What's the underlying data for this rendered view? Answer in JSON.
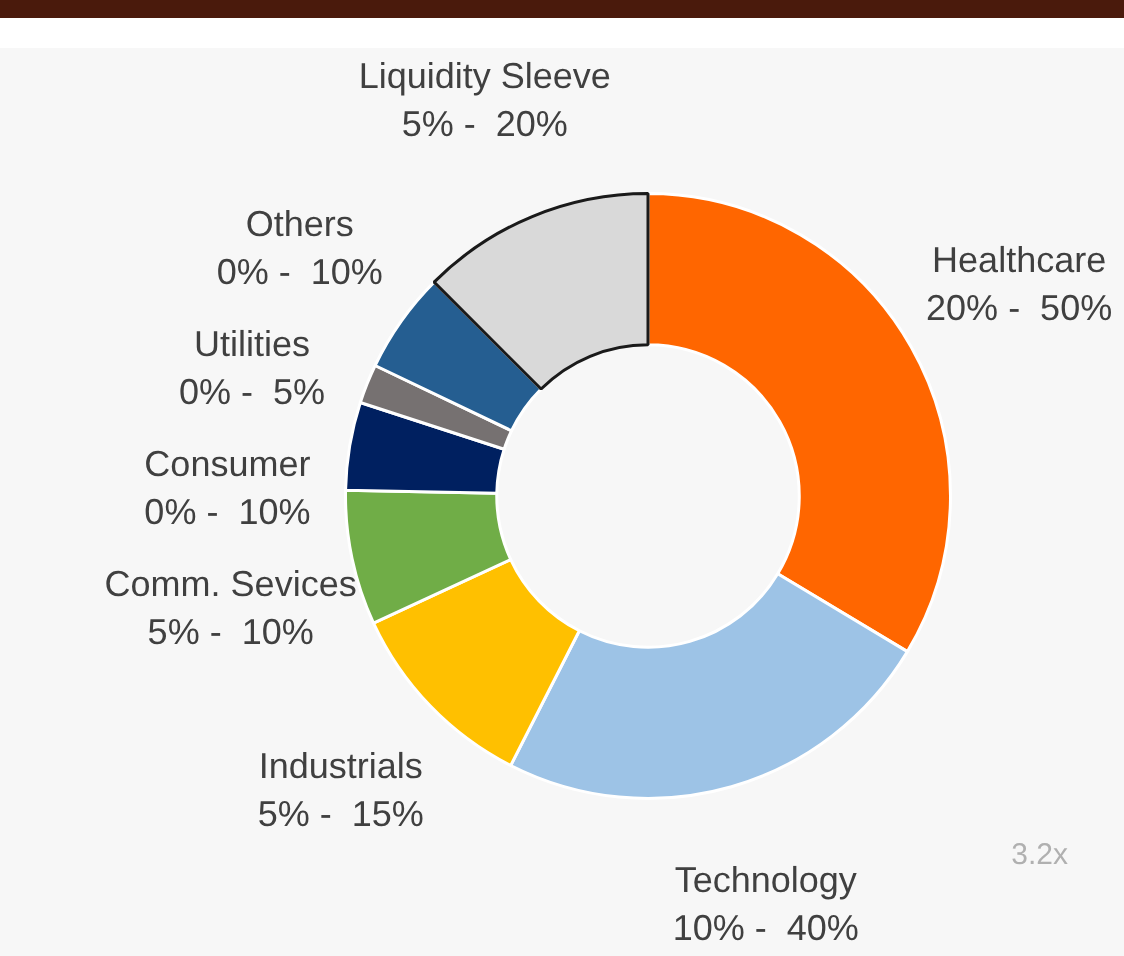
{
  "chart_data": {
    "type": "donut",
    "categories": [
      "Healthcare",
      "Technology",
      "Industrials",
      "Comm. Sevices",
      "Consumer",
      "Utilities",
      "Others",
      "Liquidity Sleeve"
    ],
    "values": [
      33.6,
      23.9,
      10.6,
      7.2,
      4.7,
      2.1,
      5.4,
      12.5
    ],
    "colors": [
      "#ff6600",
      "#9dc3e6",
      "#ffc000",
      "#70ad47",
      "#002060",
      "#767171",
      "#255e91",
      "#d9d9d9"
    ],
    "annotations": [
      {
        "text": "20% -  50%",
        "x": "Healthcare"
      },
      {
        "text": "10% -  40%",
        "x": "Technology"
      },
      {
        "text": "5% -  15%",
        "x": "Industrials"
      },
      {
        "text": "5% -  10%",
        "x": "Comm. Sevices"
      },
      {
        "text": "0% -  10%",
        "x": "Consumer"
      },
      {
        "text": "0% -  5%",
        "x": "Utilities"
      },
      {
        "text": "0% -  10%",
        "x": "Others"
      },
      {
        "text": "5% -  20%",
        "x": "Liquidity Sleeve"
      },
      "3.2x"
    ],
    "legend": false
  }
}
